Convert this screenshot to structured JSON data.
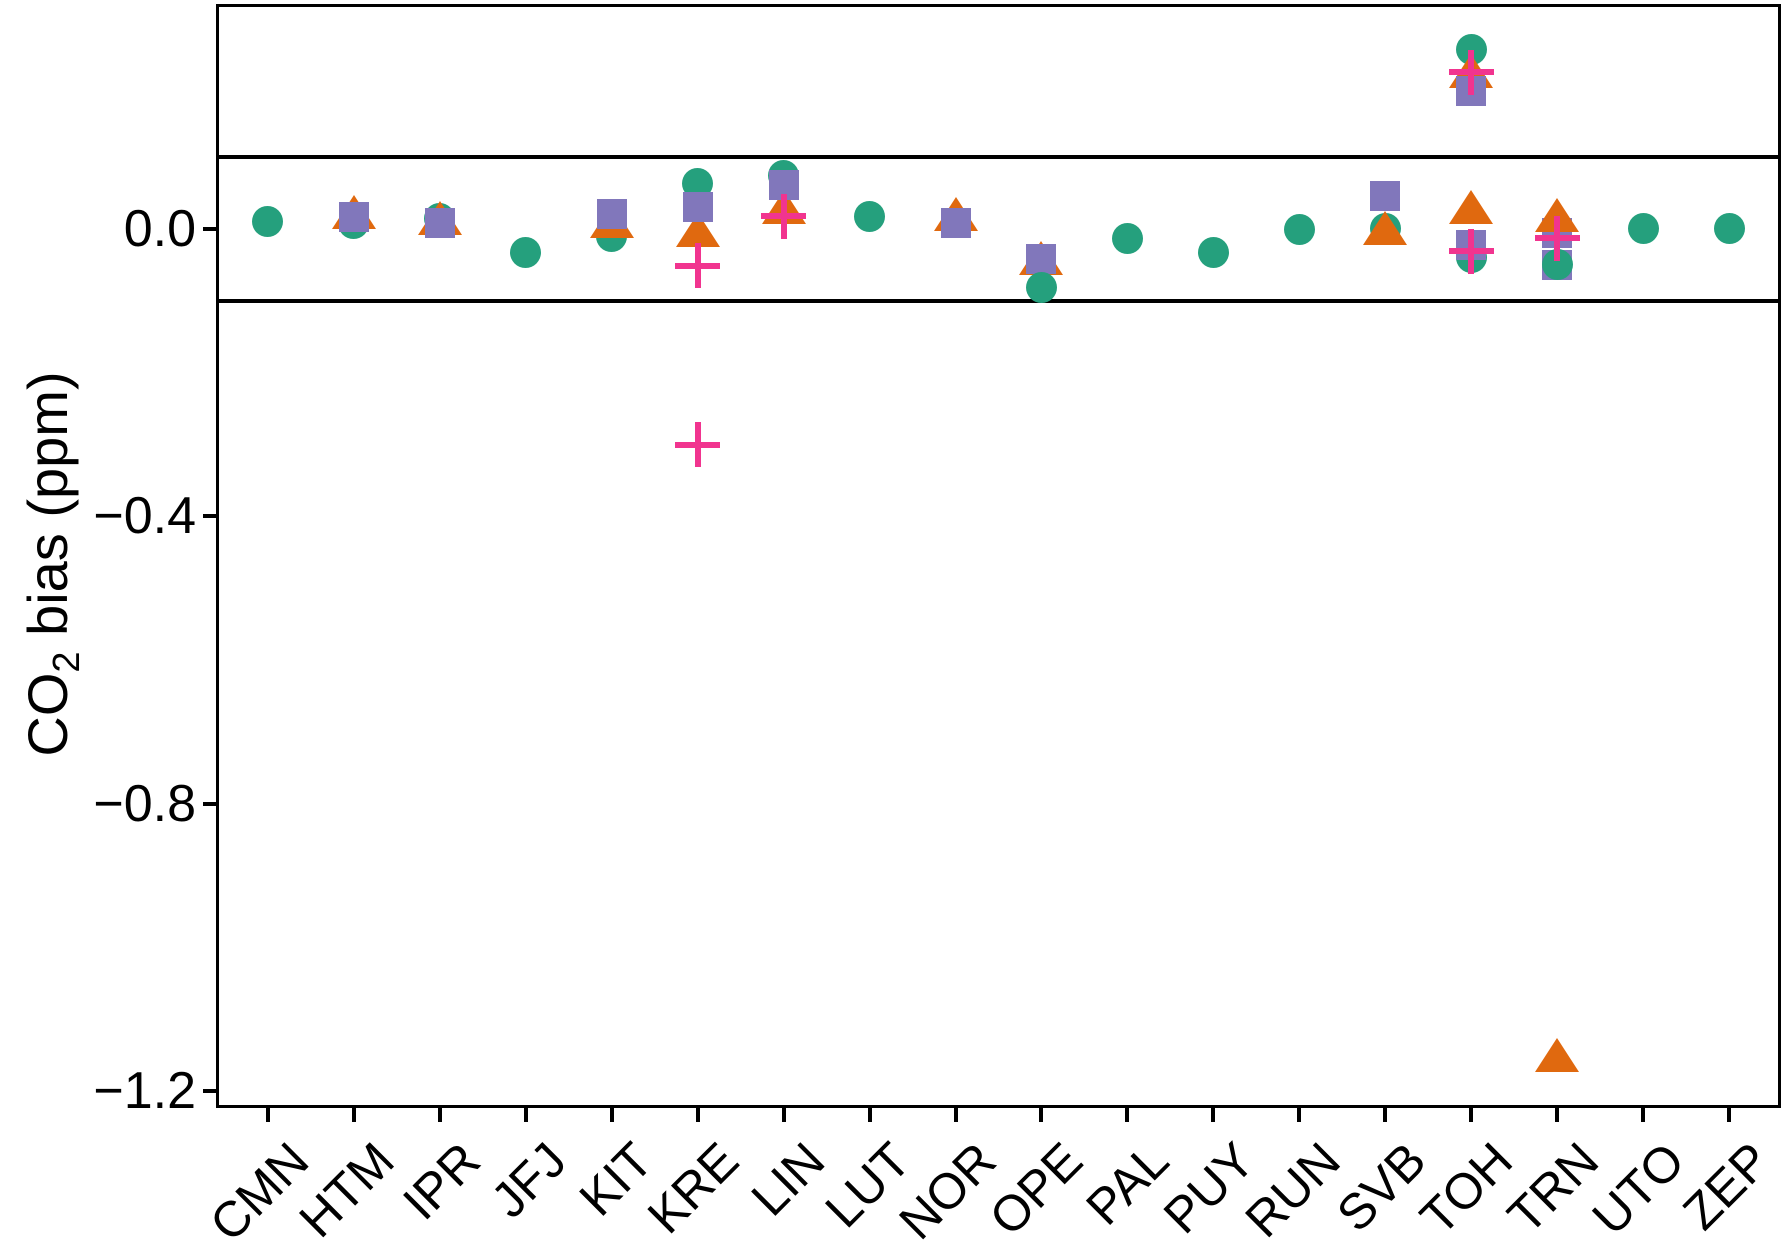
{
  "colors": {
    "circle": "#25A07D",
    "square": "#8177BB",
    "triangle": "#E0690F",
    "plus": "#F1348F",
    "axis": "#000000",
    "background": "#FFFFFF"
  },
  "y_axis_title": {
    "pre": "CO",
    "sub": "2",
    "post": " bias (ppm)"
  },
  "chart_data": {
    "type": "scatter",
    "title": "",
    "xlabel": "",
    "ylabel": "CO2 bias (ppm)",
    "grid": false,
    "legend": "none",
    "ylim": [
      -1.223,
      0.313
    ],
    "yticks": [
      {
        "value": 0.0,
        "label": "0.0"
      },
      {
        "value": -0.4,
        "label": "−0.4"
      },
      {
        "value": -0.8,
        "label": "−0.8"
      },
      {
        "value": -1.2,
        "label": "−1.2"
      }
    ],
    "reference_lines": [
      0.1,
      -0.1
    ],
    "marker_shapes": [
      "circle",
      "square",
      "triangle",
      "plus"
    ],
    "categories": [
      "CMN",
      "HTM",
      "IPR",
      "JFJ",
      "KIT",
      "KRE",
      "LIN",
      "LUT",
      "NOR",
      "OPE",
      "PAL",
      "PUY",
      "RUN",
      "SVB",
      "TOH",
      "TRN",
      "UTO",
      "ZEP"
    ],
    "stations": [
      {
        "name": "CMN",
        "points": [
          {
            "m": "circle",
            "v": 0.01
          }
        ]
      },
      {
        "name": "HTM",
        "points": [
          {
            "m": "circle",
            "v": 0.008
          },
          {
            "m": "triangle",
            "v": 0.024
          },
          {
            "m": "square",
            "v": 0.017
          }
        ]
      },
      {
        "name": "IPR",
        "points": [
          {
            "m": "circle",
            "v": 0.014
          },
          {
            "m": "triangle",
            "v": 0.015
          },
          {
            "m": "square",
            "v": 0.008
          }
        ]
      },
      {
        "name": "JFJ",
        "points": [
          {
            "m": "circle",
            "v": -0.033
          }
        ]
      },
      {
        "name": "KIT",
        "points": [
          {
            "m": "circle",
            "v": -0.011
          },
          {
            "m": "triangle",
            "v": 0.011
          },
          {
            "m": "square",
            "v": 0.021
          }
        ]
      },
      {
        "name": "KRE",
        "points": [
          {
            "m": "circle",
            "v": 0.063
          },
          {
            "m": "triangle",
            "v": -0.001
          },
          {
            "m": "square",
            "v": 0.031
          },
          {
            "m": "plus",
            "v": -0.051
          },
          {
            "m": "plus",
            "v": -0.3
          }
        ]
      },
      {
        "name": "LIN",
        "points": [
          {
            "m": "circle",
            "v": 0.075
          },
          {
            "m": "triangle",
            "v": 0.031
          },
          {
            "m": "square",
            "v": 0.061
          },
          {
            "m": "plus",
            "v": 0.018
          }
        ]
      },
      {
        "name": "LUT",
        "points": [
          {
            "m": "circle",
            "v": 0.017
          }
        ]
      },
      {
        "name": "NOR",
        "points": [
          {
            "m": "triangle",
            "v": 0.021
          },
          {
            "m": "square",
            "v": 0.008
          }
        ]
      },
      {
        "name": "OPE",
        "points": [
          {
            "m": "triangle",
            "v": -0.04
          },
          {
            "m": "square",
            "v": -0.042
          },
          {
            "m": "circle",
            "v": -0.082
          }
        ]
      },
      {
        "name": "PAL",
        "points": [
          {
            "m": "circle",
            "v": -0.013
          }
        ]
      },
      {
        "name": "PUY",
        "points": [
          {
            "m": "circle",
            "v": -0.033
          }
        ]
      },
      {
        "name": "RUN",
        "points": [
          {
            "m": "circle",
            "v": -0.001
          }
        ]
      },
      {
        "name": "SVB",
        "points": [
          {
            "m": "circle",
            "v": 0.001
          },
          {
            "m": "triangle",
            "v": 0.001
          },
          {
            "m": "square",
            "v": 0.046
          }
        ]
      },
      {
        "name": "TOH",
        "points": [
          {
            "m": "circle",
            "v": 0.25
          },
          {
            "m": "triangle",
            "v": 0.22
          },
          {
            "m": "square",
            "v": 0.192
          },
          {
            "m": "plus",
            "v": 0.218
          },
          {
            "m": "circle",
            "v": -0.04
          },
          {
            "m": "triangle",
            "v": 0.031
          },
          {
            "m": "square",
            "v": -0.022
          },
          {
            "m": "plus",
            "v": -0.031
          }
        ]
      },
      {
        "name": "TRN",
        "points": [
          {
            "m": "square",
            "v": -0.05
          },
          {
            "m": "circle",
            "v": -0.05
          },
          {
            "m": "square",
            "v": -0.006
          },
          {
            "m": "triangle",
            "v": 0.019
          },
          {
            "m": "plus",
            "v": -0.013
          },
          {
            "m": "triangle",
            "v": -1.149
          }
        ]
      },
      {
        "name": "UTO",
        "points": [
          {
            "m": "circle",
            "v": 0.001
          }
        ]
      },
      {
        "name": "ZEP",
        "points": [
          {
            "m": "circle",
            "v": 0.0
          }
        ]
      }
    ]
  },
  "layout_note": ""
}
